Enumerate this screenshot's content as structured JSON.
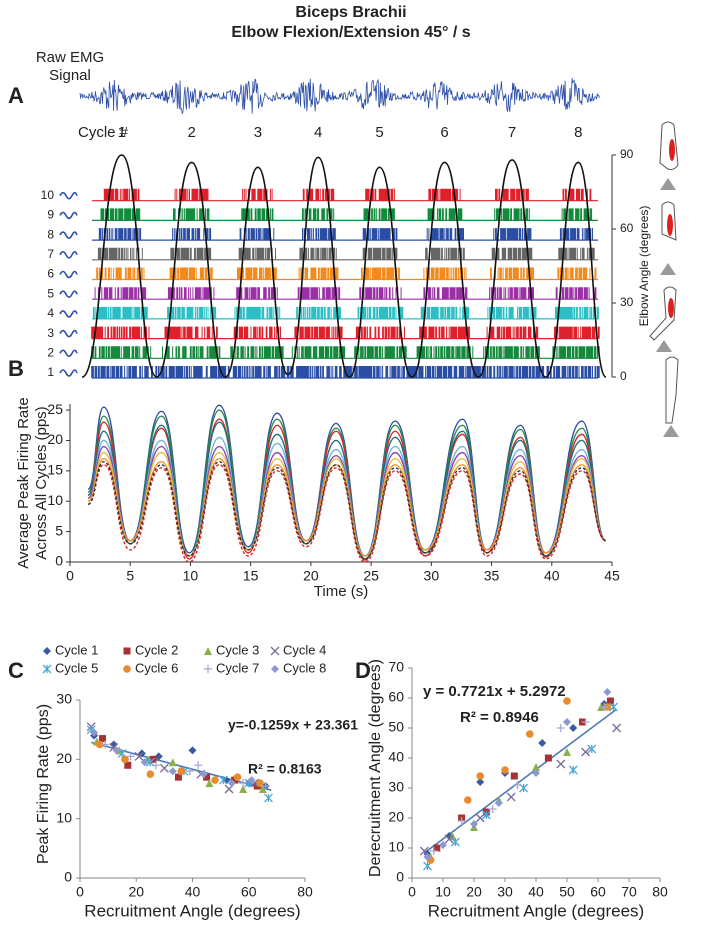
{
  "figure": {
    "title": [
      "Biceps Brachii",
      "Elbow Flexion/Extension 45° / s"
    ]
  },
  "chart_data": [
    {
      "type": "raster",
      "panel": "A",
      "signal_label": [
        "Raw EMG",
        "Signal"
      ],
      "cycle_label": "Cycle #",
      "cycles": [
        "1",
        "2",
        "3",
        "4",
        "5",
        "6",
        "7",
        "8"
      ],
      "categories": [
        "1",
        "2",
        "3",
        "4",
        "5",
        "6",
        "7",
        "8",
        "9",
        "10"
      ],
      "colors": [
        "#2a4ea6",
        "#138a3c",
        "#e0202a",
        "#2abfc4",
        "#9b2fa6",
        "#f28a1c",
        "#666666",
        "#2a4ea6",
        "#138a3c",
        "#e0202a"
      ],
      "angle": {
        "color": "#111111",
        "x": [
          1,
          4.3,
          7.2,
          10.1,
          12.9,
          15.6,
          18.1,
          20.6,
          23.2,
          25.7,
          28.4,
          31.1,
          33.9,
          36.7,
          39.5,
          42.2,
          44.5
        ],
        "values": [
          0,
          90,
          0,
          87,
          0,
          85,
          1,
          89,
          0,
          85,
          0,
          87,
          0,
          88,
          0,
          87,
          0
        ]
      },
      "xlim": [
        0,
        45
      ],
      "y2lim": [
        0,
        90
      ],
      "y2ticks": [
        0,
        30,
        60,
        90
      ],
      "y2label": "Elbow Angle (degrees)"
    },
    {
      "type": "line",
      "panel": "B",
      "x": [
        1.5,
        2.8,
        5,
        7.6,
        9.9,
        12.4,
        14.8,
        17.2,
        19.6,
        22.1,
        24.5,
        27,
        29.5,
        32.6,
        34.6,
        37.4,
        39.5,
        42.5,
        44.5
      ],
      "series": [
        {
          "color": "#2e4fa0",
          "dash": false,
          "values": [
            12,
            25.5,
            3.5,
            24.8,
            1.5,
            25.8,
            2.5,
            24.5,
            3.5,
            22.8,
            1,
            23.2,
            2,
            23.5,
            2,
            22.5,
            1.5,
            23.2,
            3.5
          ]
        },
        {
          "color": "#2a8a4a",
          "dash": false,
          "values": [
            11.5,
            24,
            3,
            24,
            1,
            25,
            2,
            23.5,
            3,
            22,
            0.5,
            22.5,
            1.5,
            22.5,
            1.5,
            21.8,
            1,
            22,
            3.5
          ]
        },
        {
          "color": "#d62728",
          "dash": false,
          "values": [
            11,
            23,
            3,
            22,
            0.5,
            23.5,
            1.5,
            22.5,
            3,
            21.5,
            0.3,
            21.5,
            1,
            21,
            1.5,
            20.5,
            0.8,
            21,
            3.5
          ]
        },
        {
          "color": "#1f6f80",
          "dash": false,
          "values": [
            11,
            21.5,
            3,
            22.5,
            1,
            23,
            2,
            21,
            3,
            20,
            0.5,
            20.5,
            1.5,
            21.5,
            2,
            20,
            1,
            20,
            3.5
          ]
        },
        {
          "color": "#6fb3e0",
          "dash": false,
          "values": [
            10.5,
            20,
            3.5,
            20,
            1,
            20.5,
            2,
            19.5,
            3.5,
            18.5,
            1,
            19,
            2,
            19,
            2,
            18.5,
            1.5,
            18.5,
            3.5
          ]
        },
        {
          "color": "#8e44ad",
          "dash": false,
          "values": [
            10.5,
            19,
            3.5,
            19,
            1,
            19,
            2,
            18,
            3.5,
            17.5,
            1,
            18,
            2,
            18,
            2,
            17.5,
            1.5,
            17.5,
            3.5
          ]
        },
        {
          "color": "#e0c040",
          "dash": false,
          "values": [
            10,
            18,
            3.5,
            18,
            1,
            18,
            2,
            17,
            3.5,
            17,
            1,
            17,
            2,
            17,
            2,
            16.5,
            1.5,
            17,
            3.5
          ]
        },
        {
          "color": "#f28e2b",
          "dash": false,
          "values": [
            10,
            17,
            3.5,
            16.5,
            1,
            17,
            2,
            16,
            3.5,
            16,
            1,
            16,
            2,
            16,
            2,
            15.5,
            1.5,
            16,
            3.5
          ]
        },
        {
          "color": "#d62728",
          "dash": true,
          "values": [
            9.5,
            16,
            2,
            15.5,
            0,
            16,
            1,
            15,
            2.5,
            15.5,
            0,
            15,
            1,
            15,
            1,
            14.5,
            0.5,
            15,
            3.5
          ]
        },
        {
          "color": "#333333",
          "dash": true,
          "values": [
            9.5,
            16.5,
            3,
            16,
            1,
            16.5,
            2,
            15.5,
            3,
            16,
            0.5,
            15.5,
            1.5,
            15.5,
            1.5,
            15,
            1,
            15.5,
            3.5
          ]
        }
      ],
      "xlim": [
        0,
        45
      ],
      "xticks": [
        0,
        5,
        10,
        15,
        20,
        25,
        30,
        35,
        40,
        45
      ],
      "ylim": [
        0,
        26
      ],
      "yticks": [
        0,
        5,
        10,
        15,
        20,
        25
      ],
      "xlabel": "Time (s)",
      "ylabel": [
        "Average Peak Firing Rate",
        "Across All Cycles (pps)"
      ]
    },
    {
      "type": "scatter",
      "panel": "C",
      "series": [
        {
          "name": "Cycle 1",
          "color": "#3a5ba0",
          "marker": "diamond",
          "x": [
            5,
            12,
            22,
            28,
            40,
            52,
            60,
            66
          ],
          "values": [
            24,
            22.5,
            21,
            20.5,
            21.5,
            16.5,
            16,
            15.5
          ]
        },
        {
          "name": "Cycle 2",
          "color": "#a83232",
          "marker": "square",
          "x": [
            8,
            17,
            26,
            35,
            45,
            55,
            63
          ],
          "values": [
            23.5,
            19,
            20,
            17,
            17,
            16.5,
            15.5
          ]
        },
        {
          "name": "Cycle 3",
          "color": "#8bb04a",
          "marker": "triangle",
          "x": [
            6,
            14,
            24,
            33,
            46,
            58,
            65
          ],
          "values": [
            23,
            21.5,
            20,
            19.5,
            16,
            15,
            15
          ]
        },
        {
          "name": "Cycle 4",
          "color": "#7a6a9a",
          "marker": "x",
          "x": [
            4,
            12,
            21,
            30,
            43,
            53,
            62
          ],
          "values": [
            25.5,
            22,
            20.5,
            18.5,
            17.5,
            15,
            16
          ]
        },
        {
          "name": "Cycle 5",
          "color": "#4aa8d8",
          "marker": "star",
          "x": [
            4,
            15,
            25,
            37,
            51,
            60,
            67
          ],
          "values": [
            25,
            21,
            19.5,
            18,
            16.5,
            16,
            13.5
          ]
        },
        {
          "name": "Cycle 6",
          "color": "#e88a2e",
          "marker": "circle",
          "x": [
            7,
            16,
            25,
            36,
            48,
            56,
            64
          ],
          "values": [
            22.5,
            20,
            17.5,
            18,
            16.5,
            17,
            16
          ]
        },
        {
          "name": "Cycle 7",
          "color": "#a8a8d8",
          "marker": "plus",
          "x": [
            9,
            18,
            27,
            39,
            42,
            58,
            66
          ],
          "values": [
            22.5,
            20.5,
            19,
            18,
            19,
            16,
            15.5
          ]
        },
        {
          "name": "Cycle 8",
          "color": "#8a9ad0",
          "marker": "diamond",
          "x": [
            5,
            13,
            23,
            33,
            44,
            54,
            61
          ],
          "values": [
            24.5,
            21.5,
            19.5,
            18,
            17.5,
            16,
            16.5
          ]
        }
      ],
      "xlim": [
        0,
        80
      ],
      "xticks": [
        0,
        20,
        40,
        60,
        80
      ],
      "ylim": [
        0,
        30
      ],
      "yticks": [
        0,
        10,
        20,
        30
      ],
      "xlabel": "Recruitment Angle (degrees)",
      "ylabel": "Peak Firing Rate (pps)",
      "equation": "y=-0.1259x + 23.361",
      "r2": "R² = 0.8163",
      "trendline": {
        "slope": -0.1259,
        "intercept": 23.361,
        "xrange": [
          4,
          68
        ],
        "color": "#4a7ab8"
      }
    },
    {
      "type": "scatter",
      "panel": "D",
      "series": [
        {
          "color": "#3a5ba0",
          "marker": "diamond",
          "x": [
            5,
            12,
            22,
            30,
            42,
            52,
            62
          ],
          "values": [
            8,
            14,
            32,
            35,
            45,
            50,
            58
          ]
        },
        {
          "color": "#a83232",
          "marker": "square",
          "x": [
            8,
            16,
            24,
            33,
            44,
            55,
            64
          ],
          "values": [
            10,
            20,
            22,
            34,
            40,
            52,
            59
          ]
        },
        {
          "color": "#8bb04a",
          "marker": "triangle",
          "x": [
            6,
            13,
            20,
            28,
            40,
            50,
            61
          ],
          "values": [
            7,
            14,
            17,
            26,
            37,
            42,
            57
          ]
        },
        {
          "color": "#7a6a9a",
          "marker": "x",
          "x": [
            4,
            12,
            22,
            32,
            48,
            56,
            66
          ],
          "values": [
            9,
            13,
            20,
            27,
            38,
            42,
            50
          ]
        },
        {
          "color": "#4aa8d8",
          "marker": "star",
          "x": [
            5,
            14,
            24,
            36,
            52,
            58,
            65
          ],
          "values": [
            4,
            12,
            21,
            30,
            36,
            43,
            57
          ]
        },
        {
          "color": "#e88a2e",
          "marker": "circle",
          "x": [
            6,
            18,
            22,
            30,
            38,
            50,
            63
          ],
          "values": [
            6,
            26,
            34,
            36,
            48,
            59,
            57
          ]
        },
        {
          "color": "#a8a8d8",
          "marker": "plus",
          "x": [
            7,
            16,
            26,
            34,
            48,
            56,
            62
          ],
          "values": [
            9,
            19,
            23,
            31,
            50,
            52,
            57
          ]
        },
        {
          "color": "#8a9ad0",
          "marker": "diamond",
          "x": [
            5,
            10,
            20,
            28,
            40,
            50,
            63
          ],
          "values": [
            7,
            11,
            18,
            25,
            35,
            52,
            62
          ]
        }
      ],
      "xlim": [
        0,
        80
      ],
      "xticks": [
        0,
        10,
        20,
        30,
        40,
        50,
        60,
        70,
        80
      ],
      "ylim": [
        0,
        70
      ],
      "yticks": [
        0,
        10,
        20,
        30,
        40,
        50,
        60,
        70
      ],
      "xlabel": "Recruitment Angle (degrees)",
      "ylabel": "Derecruitment Angle (degrees)",
      "equation": "y = 0.7721x + 5.2972",
      "r2": "R² = 0.8946",
      "trendline": {
        "slope": 0.7721,
        "intercept": 5.2972,
        "xrange": [
          4,
          66
        ],
        "color": "#4a7ab8"
      }
    }
  ]
}
